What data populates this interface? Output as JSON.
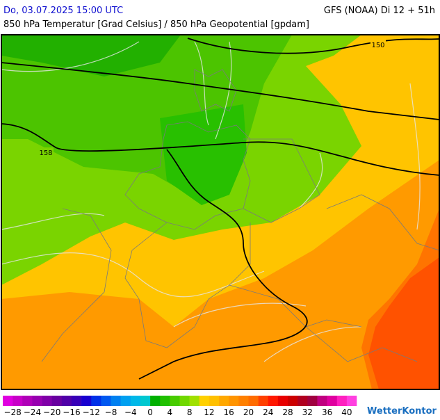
{
  "header": {
    "valid_time": "Do, 03.07.2025 15:00 UTC",
    "model_run": "GFS (NOAA) Di 12 + 51h",
    "subtitle": "850 hPa Temperatur [Grad Celsius] / 850 hPa Geopotential [gpdam]"
  },
  "map": {
    "contour_labels": [
      "150",
      "158"
    ]
  },
  "colorbar": {
    "colors": [
      "#e000e0",
      "#c800c8",
      "#b000b8",
      "#9800b0",
      "#8000a8",
      "#6800a0",
      "#5000a8",
      "#3800b8",
      "#1800d0",
      "#0030e8",
      "#0058f0",
      "#0080f0",
      "#00a0f0",
      "#00b8e8",
      "#00c8d0",
      "#00b000",
      "#20c000",
      "#48cc00",
      "#70d800",
      "#a0e000",
      "#ffd000",
      "#ffc000",
      "#ffa800",
      "#ff9400",
      "#ff8000",
      "#ff6c00",
      "#ff4000",
      "#ff1800",
      "#e80000",
      "#cc0000",
      "#b00020",
      "#a00040",
      "#c00080",
      "#e000a0",
      "#ff20c0",
      "#ff40e0"
    ],
    "labels": [
      "−28",
      "−24",
      "−20",
      "−16",
      "−12",
      "−8",
      "−4",
      "0",
      "4",
      "8",
      "12",
      "16",
      "20",
      "24",
      "28",
      "32",
      "36",
      "40"
    ]
  },
  "logo": "WetterKontor"
}
